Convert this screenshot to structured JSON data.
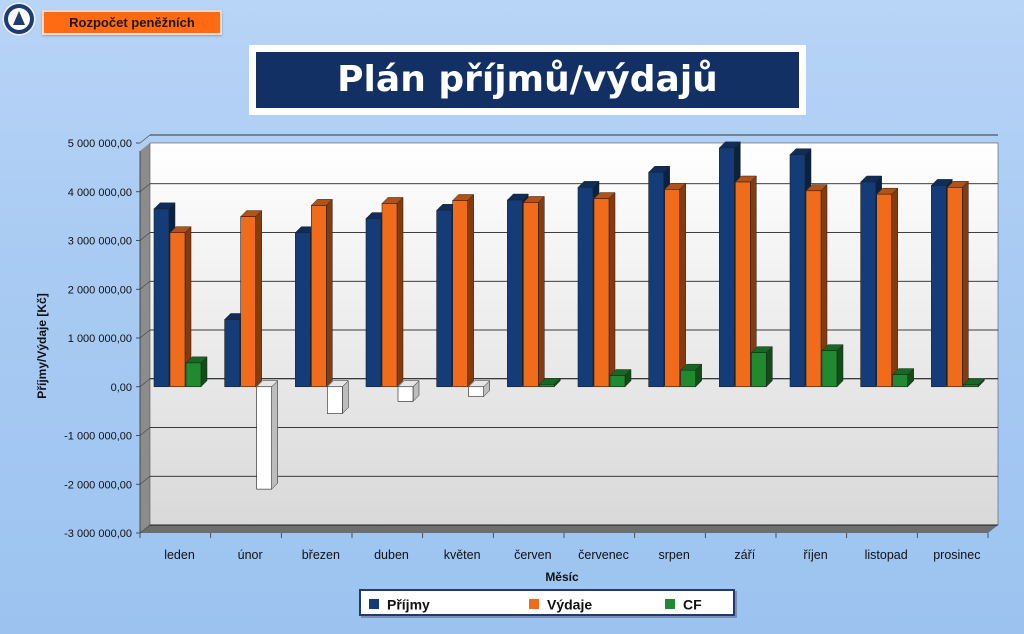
{
  "nav": {
    "button_label": "Rozpočet peněžních"
  },
  "header": {
    "title": "Plán příjmů/výdajů"
  },
  "chart_data": {
    "type": "bar",
    "xlabel": "Měsíc",
    "ylabel": "Příjmy/Výdaje [Kč]",
    "ylim": [
      -3000000,
      5000000
    ],
    "yticks": [
      "5 000 000,00",
      "4 000 000,00",
      "3 000 000,00",
      "2 000 000,00",
      "1 000 000,00",
      "0,00",
      "-1 000 000,00",
      "-2 000 000,00",
      "-3 000 000,00"
    ],
    "categories": [
      "leden",
      "únor",
      "březen",
      "duben",
      "květen",
      "červen",
      "červenec",
      "srpen",
      "září",
      "říjen",
      "listopad",
      "prosinec"
    ],
    "series": [
      {
        "name": "Příjmy",
        "color": "#133c78",
        "values": [
          3650000,
          1380000,
          3160000,
          3450000,
          3620000,
          3830000,
          4090000,
          4400000,
          4900000,
          4760000,
          4200000,
          4130000
        ]
      },
      {
        "name": "Výdaje",
        "color": "#f06c1a",
        "values": [
          3160000,
          3490000,
          3720000,
          3760000,
          3820000,
          3780000,
          3860000,
          4050000,
          4200000,
          4020000,
          3950000,
          4090000
        ]
      },
      {
        "name": "CF",
        "color": "#1f8a2e",
        "negative_color": "#ffffff",
        "values": [
          490000,
          -2100000,
          -550000,
          -300000,
          -200000,
          50000,
          230000,
          340000,
          700000,
          740000,
          250000,
          40000
        ]
      }
    ],
    "grid": true,
    "legend_position": "bottom"
  }
}
